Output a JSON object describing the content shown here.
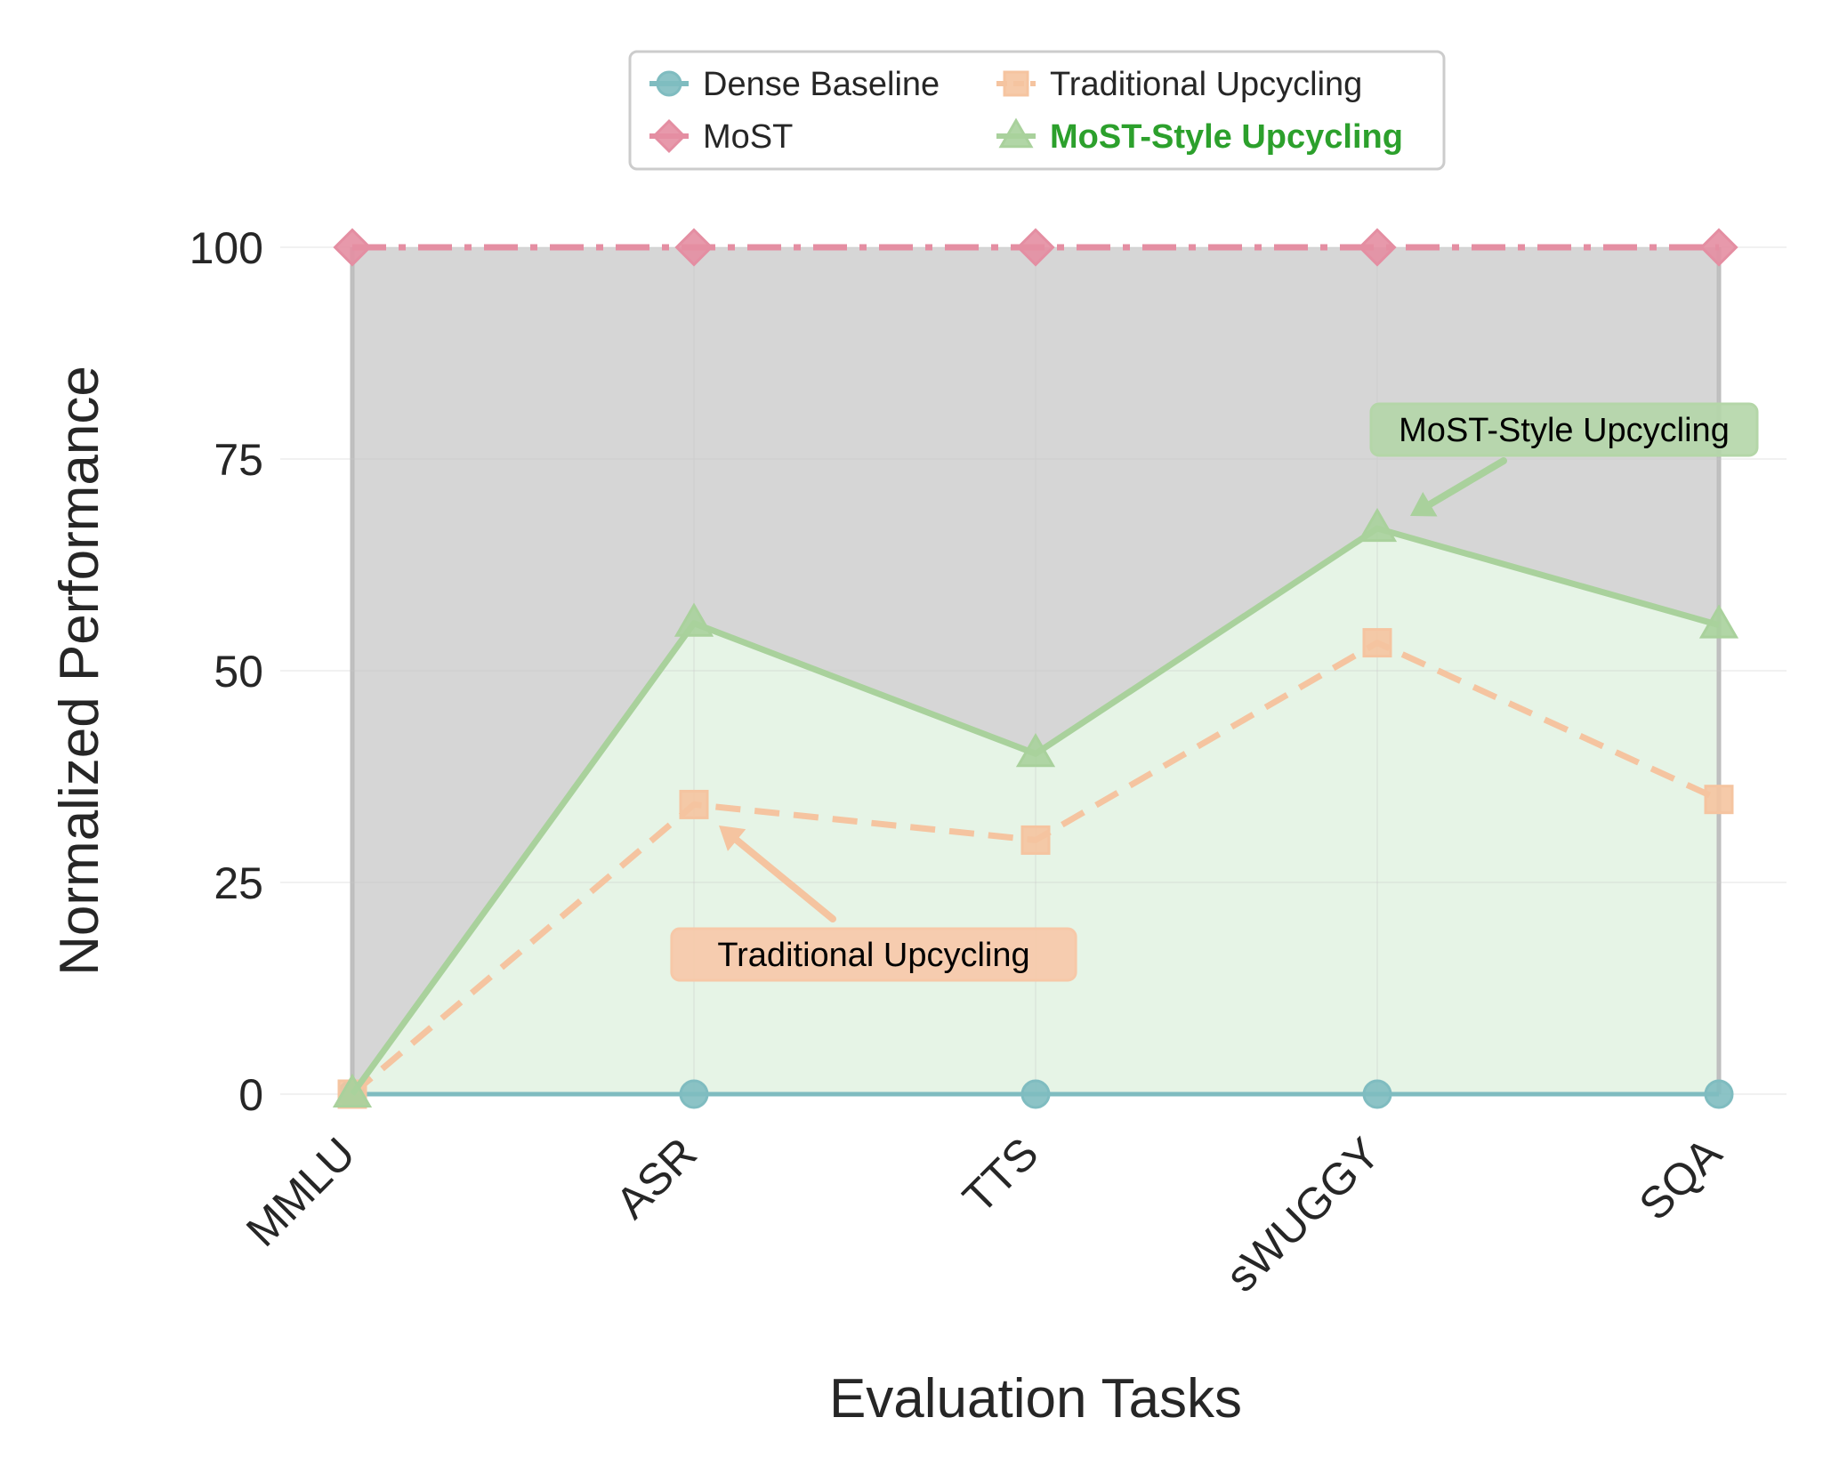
{
  "chart_data": {
    "type": "line",
    "title": "",
    "xlabel": "Evaluation Tasks",
    "ylabel": "Normalized Performance",
    "categories": [
      "MMLU",
      "ASR",
      "TTS",
      "sWUGGY",
      "SQA"
    ],
    "ylim": [
      0,
      100
    ],
    "yticks": [
      0,
      25,
      50,
      75,
      100
    ],
    "grid": true,
    "legend": {
      "placement": "top-center",
      "columns": 2
    },
    "series": [
      {
        "name": "Dense Baseline",
        "values": [
          0,
          0,
          0,
          0,
          0
        ],
        "color": "#7fbcc0",
        "marker": "circle",
        "linestyle": "solid"
      },
      {
        "name": "Traditional Upcycling",
        "values": [
          0,
          34.2,
          30.0,
          53.3,
          34.8
        ],
        "color": "#f5c4a0",
        "marker": "square",
        "linestyle": "dashed"
      },
      {
        "name": "MoST",
        "values": [
          100,
          100,
          100,
          100,
          100
        ],
        "color": "#e48ea2",
        "marker": "diamond",
        "linestyle": "dashdot"
      },
      {
        "name": "MoST-Style Upcycling",
        "values": [
          0,
          55.6,
          40.2,
          66.8,
          55.4
        ],
        "color": "#a9d19c",
        "marker": "triangle",
        "linestyle": "solid",
        "legend_text_color": "#2ca02c",
        "legend_bold": true
      }
    ],
    "fills": [
      {
        "between": [
          "Dense Baseline",
          "MoST"
        ],
        "color": "#d6d6d6"
      },
      {
        "between": [
          "Dense Baseline",
          "MoST-Style Upcycling"
        ],
        "color": "#e6f4e6"
      }
    ],
    "annotations": [
      {
        "text": "MoST-Style Upcycling",
        "target_category": "sWUGGY",
        "target_value": 66.8,
        "box_color": "#b4d6a8",
        "arrow_color": "#a9d19c"
      },
      {
        "text": "Traditional Upcycling",
        "target_category": "ASR",
        "target_value": 34.2,
        "box_color": "#f7c8a8",
        "arrow_color": "#f5c4a0"
      }
    ]
  }
}
